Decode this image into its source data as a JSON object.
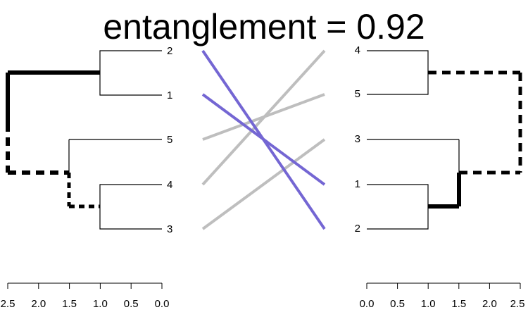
{
  "title": "entanglement = 0.92",
  "colors": {
    "highlight": "#7466D3",
    "muted": "#BEBEBE",
    "branch": "#000000"
  },
  "left_tree": {
    "leaves": [
      "2",
      "1",
      "5",
      "4",
      "3"
    ],
    "axis_ticks": [
      "2.5",
      "2.0",
      "1.5",
      "1.0",
      "0.5",
      "0.0"
    ]
  },
  "right_tree": {
    "leaves": [
      "4",
      "5",
      "3",
      "1",
      "2"
    ],
    "axis_ticks": [
      "0.0",
      "0.5",
      "1.0",
      "1.5",
      "2.0",
      "2.5"
    ]
  },
  "connections": [
    {
      "leaf": "2",
      "color": "highlight"
    },
    {
      "leaf": "1",
      "color": "highlight"
    },
    {
      "leaf": "5",
      "color": "muted"
    },
    {
      "leaf": "4",
      "color": "muted"
    },
    {
      "leaf": "3",
      "color": "muted"
    }
  ]
}
